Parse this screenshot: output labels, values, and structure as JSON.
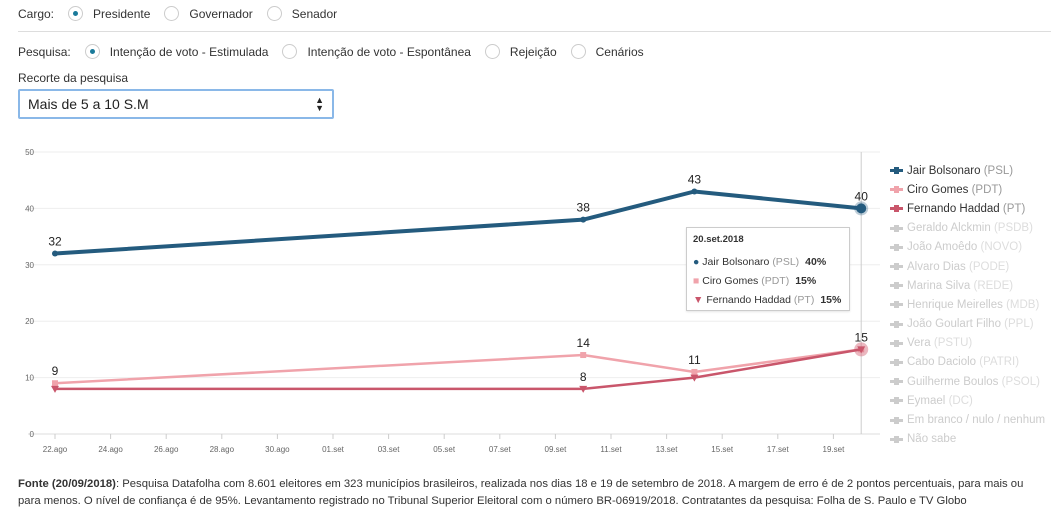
{
  "cargo": {
    "label": "Cargo:",
    "options": [
      "Presidente",
      "Governador",
      "Senador"
    ],
    "selected": 0
  },
  "pesquisa": {
    "label": "Pesquisa:",
    "options": [
      "Intenção de voto - Estimulada",
      "Intenção de voto - Espontânea",
      "Rejeição",
      "Cenários"
    ],
    "selected": 0
  },
  "recorte": {
    "label": "Recorte da pesquisa",
    "value": "Mais de 5 a 10 S.M"
  },
  "chart_data": {
    "type": "line",
    "ylim": [
      0,
      50
    ],
    "yticks": [
      "0",
      "10",
      "20",
      "30",
      "40",
      "50"
    ],
    "xticks": [
      "22.ago",
      "24.ago",
      "26.ago",
      "28.ago",
      "30.ago",
      "01.set",
      "03.set",
      "05.set",
      "07.set",
      "09.set",
      "11.set",
      "13.set",
      "15.set",
      "17.set",
      "19.set"
    ],
    "x": [
      "22.ago",
      "10.set",
      "14.set",
      "20.set"
    ],
    "grid": true,
    "legend_position": "right",
    "series": [
      {
        "name": "Jair Bolsonaro",
        "party": "(PSL)",
        "color": "#245b7e",
        "marker": "circle",
        "values": [
          32,
          38,
          43,
          40
        ],
        "labels": [
          "32",
          "38",
          "43",
          "40"
        ]
      },
      {
        "name": "Ciro Gomes",
        "party": "(PDT)",
        "color": "#f0a3ab",
        "marker": "square",
        "values": [
          9,
          14,
          11,
          15
        ],
        "labels": [
          "9",
          "14",
          "11",
          "15"
        ]
      },
      {
        "name": "Fernando Haddad",
        "party": "(PT)",
        "color": "#c9566b",
        "marker": "triangle-down",
        "values": [
          8,
          8,
          10,
          15
        ],
        "labels": [
          "",
          "8",
          "",
          ""
        ]
      }
    ],
    "inactive_legend": [
      {
        "name": "Geraldo Alckmin",
        "party": "(PSDB)"
      },
      {
        "name": "João Amoêdo",
        "party": "(NOVO)"
      },
      {
        "name": "Alvaro Dias",
        "party": "(PODE)"
      },
      {
        "name": "Marina Silva",
        "party": "(REDE)"
      },
      {
        "name": "Henrique Meirelles",
        "party": "(MDB)"
      },
      {
        "name": "João Goulart Filho",
        "party": "(PPL)"
      },
      {
        "name": "Vera",
        "party": "(PSTU)"
      },
      {
        "name": "Cabo Daciolo",
        "party": "(PATRI)"
      },
      {
        "name": "Guilherme Boulos",
        "party": "(PSOL)"
      },
      {
        "name": "Eymael",
        "party": "(DC)"
      },
      {
        "name": "Em branco / nulo / nenhum",
        "party": ""
      },
      {
        "name": "Não sabe",
        "party": ""
      }
    ],
    "tooltip": {
      "title": "20.set.2018",
      "rows": [
        {
          "name": "Jair Bolsonaro",
          "party": "(PSL)",
          "value": "40%"
        },
        {
          "name": "Ciro Gomes",
          "party": "(PDT)",
          "value": "15%"
        },
        {
          "name": "Fernando Haddad",
          "party": "(PT)",
          "value": "15%"
        }
      ]
    }
  },
  "footer": {
    "bold": "Fonte (20/09/2018)",
    "text": ": Pesquisa Datafolha com 8.601 eleitores em 323 municípios brasileiros, realizada nos dias 18 e 19 de setembro de 2018. A margem de erro é de 2 pontos percentuais, para mais ou para menos. O nível de confiança é de 95%. Levantamento registrado no Tribunal Superior Eleitoral com o número BR-06919/2018. Contratantes da pesquisa: Folha de S. Paulo e TV Globo"
  }
}
